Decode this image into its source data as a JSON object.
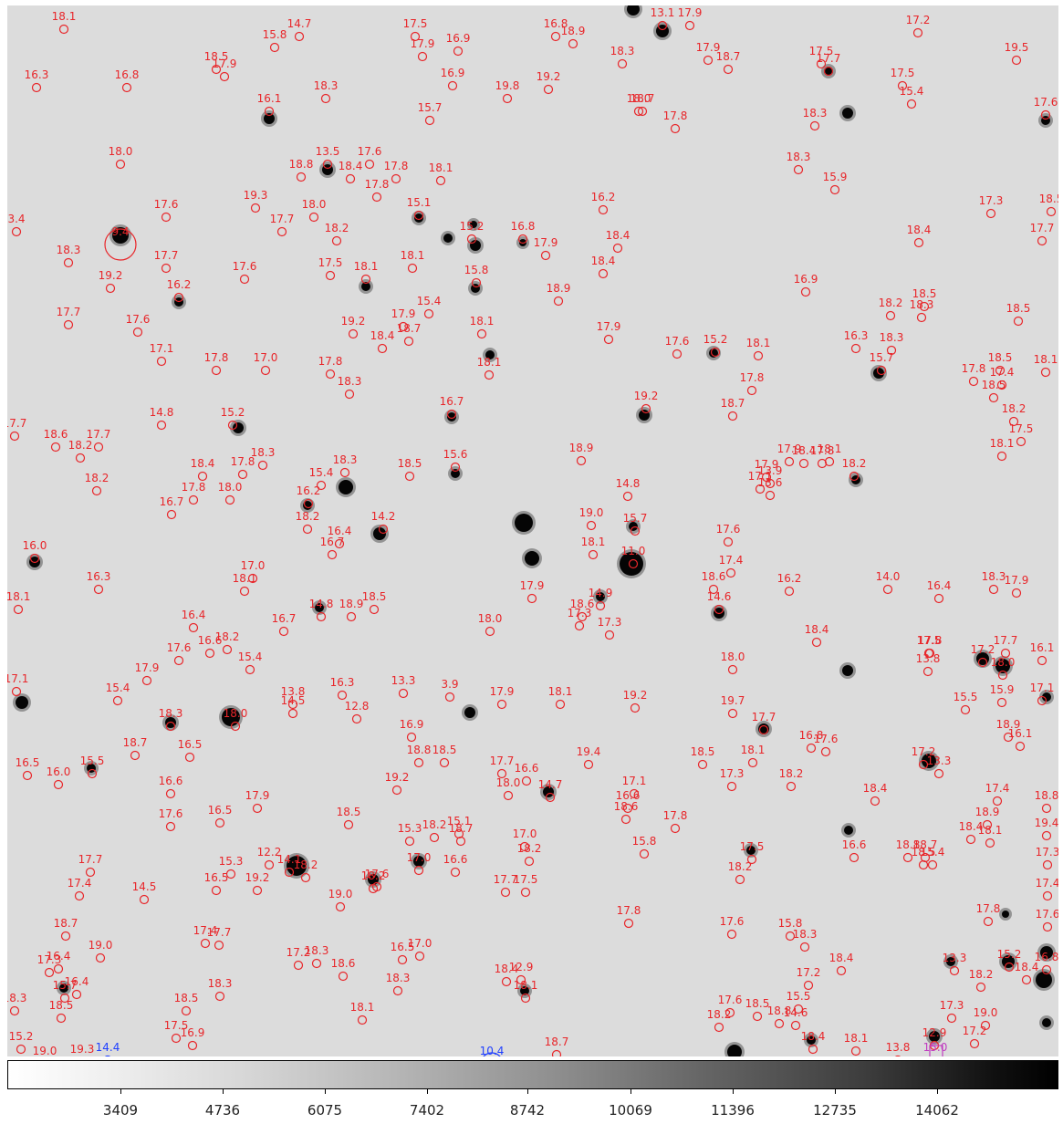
{
  "image": {
    "background_color": "#dcdcdc",
    "marker_color_catalog": "#e8262a",
    "marker_color_target": "#1f3fff",
    "marker_color_box": "#c03cc0"
  },
  "colorbar": {
    "tick_labels": [
      "3409",
      "4736",
      "6075",
      "7402",
      "8742",
      "10069",
      "11396",
      "12735",
      "14062"
    ]
  },
  "catalog_labels": [
    {
      "t": "18.1",
      "c": "r"
    },
    {
      "t": "14.7",
      "c": "r"
    },
    {
      "t": "15.8",
      "c": "r"
    },
    {
      "t": "17.5",
      "c": "r"
    },
    {
      "t": "17.9",
      "c": "r"
    },
    {
      "t": "16.9",
      "c": "r"
    },
    {
      "t": "16.8",
      "c": "r"
    },
    {
      "t": "18.9",
      "c": "r"
    },
    {
      "t": "13.1",
      "c": "r"
    },
    {
      "t": "17.9",
      "c": "r"
    },
    {
      "t": "18.3",
      "c": "r"
    },
    {
      "t": "17.9",
      "c": "r"
    },
    {
      "t": "18.7",
      "c": "r"
    },
    {
      "t": "17.2",
      "c": "r"
    },
    {
      "t": "19.5",
      "c": "r"
    },
    {
      "t": "16.3",
      "c": "r"
    },
    {
      "t": "16.8",
      "c": "r"
    },
    {
      "t": "18.5",
      "c": "r"
    },
    {
      "t": "17.9",
      "c": "r"
    },
    {
      "t": "18.3",
      "c": "r"
    },
    {
      "t": "16.9",
      "c": "r"
    },
    {
      "t": "19.8",
      "c": "r"
    },
    {
      "t": "19.2",
      "c": "r"
    },
    {
      "t": "18.7",
      "c": "r"
    },
    {
      "t": "17.5",
      "c": "r"
    },
    {
      "t": "15.4",
      "c": "r"
    },
    {
      "t": "17.6",
      "c": "r"
    },
    {
      "t": "16.1",
      "c": "r"
    },
    {
      "t": "15.7",
      "c": "r"
    },
    {
      "t": "18.0",
      "c": "r"
    },
    {
      "t": "17.8",
      "c": "r"
    },
    {
      "t": "18.3",
      "c": "r"
    },
    {
      "t": "17.5",
      "c": "r"
    },
    {
      "t": "17.7",
      "c": "r"
    },
    {
      "t": "18.0",
      "c": "r"
    },
    {
      "t": "13.5",
      "c": "r"
    },
    {
      "t": "17.6",
      "c": "r"
    },
    {
      "t": "18.8",
      "c": "r"
    },
    {
      "t": "18.4",
      "c": "r"
    },
    {
      "t": "17.8",
      "c": "r"
    },
    {
      "t": "18.1",
      "c": "r"
    },
    {
      "t": "17.8",
      "c": "r"
    },
    {
      "t": "18.3",
      "c": "r"
    },
    {
      "t": "15.9",
      "c": "r"
    },
    {
      "t": "9.4",
      "c": "r"
    },
    {
      "t": "17.6",
      "c": "r"
    },
    {
      "t": "19.3",
      "c": "r"
    },
    {
      "t": "18.0",
      "c": "r"
    },
    {
      "t": "15.1",
      "c": "r"
    },
    {
      "t": "16.2",
      "c": "r"
    },
    {
      "t": "17.3",
      "c": "r"
    },
    {
      "t": "18.5",
      "c": "r"
    },
    {
      "t": "3.4",
      "c": "r"
    },
    {
      "t": "17.7",
      "c": "r"
    },
    {
      "t": "18.2",
      "c": "r"
    },
    {
      "t": "15.2",
      "c": "r"
    },
    {
      "t": "16.8",
      "c": "r"
    },
    {
      "t": "17.9",
      "c": "r"
    },
    {
      "t": "18.4",
      "c": "r"
    },
    {
      "t": "18.4",
      "c": "r"
    },
    {
      "t": "17.7",
      "c": "r"
    },
    {
      "t": "18.3",
      "c": "r"
    },
    {
      "t": "17.7",
      "c": "r"
    },
    {
      "t": "17.6",
      "c": "r"
    },
    {
      "t": "17.5",
      "c": "r"
    },
    {
      "t": "18.1",
      "c": "r"
    },
    {
      "t": "18.1",
      "c": "r"
    },
    {
      "t": "18.4",
      "c": "r"
    },
    {
      "t": "19.2",
      "c": "r"
    },
    {
      "t": "16.2",
      "c": "r"
    },
    {
      "t": "15.8",
      "c": "r"
    },
    {
      "t": "16.9",
      "c": "r"
    },
    {
      "t": "18.5",
      "c": "r"
    },
    {
      "t": "17.7",
      "c": "r"
    },
    {
      "t": "17.6",
      "c": "r"
    },
    {
      "t": "18.9",
      "c": "r"
    },
    {
      "t": "18.2",
      "c": "r"
    },
    {
      "t": "18.3",
      "c": "r"
    },
    {
      "t": "18.5",
      "c": "r"
    },
    {
      "t": "19.2",
      "c": "r"
    },
    {
      "t": "17.9",
      "c": "r"
    },
    {
      "t": "18.7",
      "c": "r"
    },
    {
      "t": "18.1",
      "c": "r"
    },
    {
      "t": "18.4",
      "c": "r"
    },
    {
      "t": "17.1",
      "c": "r"
    },
    {
      "t": "17.8",
      "c": "r"
    },
    {
      "t": "17.0",
      "c": "r"
    },
    {
      "t": "17.8",
      "c": "r"
    },
    {
      "t": "18.1",
      "c": "r"
    },
    {
      "t": "15.4",
      "c": "r"
    },
    {
      "t": "17.9",
      "c": "r"
    },
    {
      "t": "17.6",
      "c": "r"
    },
    {
      "t": "15.2",
      "c": "r"
    },
    {
      "t": "18.1",
      "c": "r"
    },
    {
      "t": "16.3",
      "c": "r"
    },
    {
      "t": "18.3",
      "c": "r"
    },
    {
      "t": "15.7",
      "c": "r"
    },
    {
      "t": "18.5",
      "c": "r"
    },
    {
      "t": "17.4",
      "c": "r"
    },
    {
      "t": "18.1",
      "c": "r"
    },
    {
      "t": "18.3",
      "c": "r"
    },
    {
      "t": "17.8",
      "c": "r"
    },
    {
      "t": "17.8",
      "c": "r"
    },
    {
      "t": "18.5",
      "c": "r"
    },
    {
      "t": "14.8",
      "c": "r"
    },
    {
      "t": "15.2",
      "c": "r"
    },
    {
      "t": "16.7",
      "c": "r"
    },
    {
      "t": "19.2",
      "c": "r"
    },
    {
      "t": "18.7",
      "c": "r"
    },
    {
      "t": "18.2",
      "c": "r"
    },
    {
      "t": "17.7",
      "c": "r"
    },
    {
      "t": "18.6",
      "c": "r"
    },
    {
      "t": "17.7",
      "c": "r"
    },
    {
      "t": "18.2",
      "c": "r"
    },
    {
      "t": "18.1",
      "c": "r"
    },
    {
      "t": "17.5",
      "c": "r"
    },
    {
      "t": "18.4",
      "c": "r"
    },
    {
      "t": "17.8",
      "c": "r"
    },
    {
      "t": "18.3",
      "c": "r"
    },
    {
      "t": "18.5",
      "c": "r"
    },
    {
      "t": "18.3",
      "c": "r"
    },
    {
      "t": "15.6",
      "c": "r"
    },
    {
      "t": "18.9",
      "c": "r"
    },
    {
      "t": "18.4",
      "c": "r"
    },
    {
      "t": "17.8",
      "c": "r"
    },
    {
      "t": "18.2",
      "c": "r"
    },
    {
      "t": "13.8",
      "c": "r"
    },
    {
      "t": "13.9",
      "c": "r"
    },
    {
      "t": "17.9",
      "c": "r"
    },
    {
      "t": "18.1",
      "c": "r"
    },
    {
      "t": "18.2",
      "c": "r"
    },
    {
      "t": "16.7",
      "c": "r"
    },
    {
      "t": "17.8",
      "c": "r"
    },
    {
      "t": "18.0",
      "c": "r"
    },
    {
      "t": "16.2",
      "c": "r"
    },
    {
      "t": "15.4",
      "c": "r"
    },
    {
      "t": "14.8",
      "c": "r"
    },
    {
      "t": "13.6",
      "c": "r"
    },
    {
      "t": "17.1",
      "c": "r"
    },
    {
      "t": "17.9",
      "c": "r"
    },
    {
      "t": "18.2",
      "c": "r"
    },
    {
      "t": "14.2",
      "c": "r"
    },
    {
      "t": "19.0",
      "c": "r"
    },
    {
      "t": "15.7",
      "c": "r"
    },
    {
      "t": "17.6",
      "c": "r"
    },
    {
      "t": "16.0",
      "c": "r"
    },
    {
      "t": "16.7",
      "c": "r"
    },
    {
      "t": "16.4",
      "c": "r"
    },
    {
      "t": "18.1",
      "c": "r"
    },
    {
      "t": "11.0",
      "c": "r"
    },
    {
      "t": "17.4",
      "c": "r"
    },
    {
      "t": "16.3",
      "c": "r"
    },
    {
      "t": "18.1",
      "c": "r"
    },
    {
      "t": "17.0",
      "c": "r"
    },
    {
      "t": "18.6",
      "c": "r"
    },
    {
      "t": "17.9",
      "c": "r"
    },
    {
      "t": "14.9",
      "c": "r"
    },
    {
      "t": "18.6",
      "c": "r"
    },
    {
      "t": "16.2",
      "c": "r"
    },
    {
      "t": "17.3",
      "c": "r"
    },
    {
      "t": "14.0",
      "c": "r"
    },
    {
      "t": "16.4",
      "c": "r"
    },
    {
      "t": "18.3",
      "c": "r"
    },
    {
      "t": "17.9",
      "c": "r"
    },
    {
      "t": "18.1",
      "c": "r"
    },
    {
      "t": "14.8",
      "c": "r"
    },
    {
      "t": "18.5",
      "c": "r"
    },
    {
      "t": "16.7",
      "c": "r"
    },
    {
      "t": "18.9",
      "c": "r"
    },
    {
      "t": "14.6",
      "c": "r"
    },
    {
      "t": "16.4",
      "c": "r"
    },
    {
      "t": "18.0",
      "c": "r"
    },
    {
      "t": "17.3",
      "c": "r"
    },
    {
      "t": "18.4",
      "c": "r"
    },
    {
      "t": "18.0",
      "c": "r"
    },
    {
      "t": "17.8",
      "c": "r"
    },
    {
      "t": "16.6",
      "c": "r"
    },
    {
      "t": "18.2",
      "c": "r"
    },
    {
      "t": "17.7",
      "c": "r"
    },
    {
      "t": "17.5",
      "c": "r"
    },
    {
      "t": "17.9",
      "c": "r"
    },
    {
      "t": "17.6",
      "c": "r"
    },
    {
      "t": "15.4",
      "c": "r"
    },
    {
      "t": "16.1",
      "c": "r"
    },
    {
      "t": "17.2",
      "c": "r"
    },
    {
      "t": "18.0",
      "c": "r"
    },
    {
      "t": "17.1",
      "c": "r"
    },
    {
      "t": "15.4",
      "c": "r"
    },
    {
      "t": "13.8",
      "c": "r"
    },
    {
      "t": "13.3",
      "c": "r"
    },
    {
      "t": "3.9",
      "c": "r"
    },
    {
      "t": "16.3",
      "c": "r"
    },
    {
      "t": "17.9",
      "c": "r"
    },
    {
      "t": "18.1",
      "c": "r"
    },
    {
      "t": "19.2",
      "c": "r"
    },
    {
      "t": "17.1",
      "c": "r"
    },
    {
      "t": "18.3",
      "c": "r"
    },
    {
      "t": "18.0",
      "c": "r"
    },
    {
      "t": "15.9",
      "c": "r"
    },
    {
      "t": "15.5",
      "c": "r"
    },
    {
      "t": "12.8",
      "c": "r"
    },
    {
      "t": "17.7",
      "c": "r"
    },
    {
      "t": "19.7",
      "c": "r"
    },
    {
      "t": "14.5",
      "c": "r"
    },
    {
      "t": "16.9",
      "c": "r"
    },
    {
      "t": "18.8",
      "c": "r"
    },
    {
      "t": "18.5",
      "c": "r"
    },
    {
      "t": "18.7",
      "c": "r"
    },
    {
      "t": "16.5",
      "c": "r"
    },
    {
      "t": "16.8",
      "c": "r"
    },
    {
      "t": "16.1",
      "c": "r"
    },
    {
      "t": "17.6",
      "c": "r"
    },
    {
      "t": "17.2",
      "c": "r"
    },
    {
      "t": "18.9",
      "c": "r"
    },
    {
      "t": "13.3",
      "c": "r"
    },
    {
      "t": "15.5",
      "c": "r"
    },
    {
      "t": "16.5",
      "c": "r"
    },
    {
      "t": "16.0",
      "c": "r"
    },
    {
      "t": "17.7",
      "c": "r"
    },
    {
      "t": "19.4",
      "c": "r"
    },
    {
      "t": "18.1",
      "c": "r"
    },
    {
      "t": "18.5",
      "c": "r"
    },
    {
      "t": "17.3",
      "c": "r"
    },
    {
      "t": "18.2",
      "c": "r"
    },
    {
      "t": "18.4",
      "c": "r"
    },
    {
      "t": "17.4",
      "c": "r"
    },
    {
      "t": "18.8",
      "c": "r"
    },
    {
      "t": "16.6",
      "c": "r"
    },
    {
      "t": "17.9",
      "c": "r"
    },
    {
      "t": "19.2",
      "c": "r"
    },
    {
      "t": "14.7",
      "c": "r"
    },
    {
      "t": "16.6",
      "c": "r"
    },
    {
      "t": "18.0",
      "c": "r"
    },
    {
      "t": "16.6",
      "c": "r"
    },
    {
      "t": "17.1",
      "c": "r"
    },
    {
      "t": "18.6",
      "c": "r"
    },
    {
      "t": "18.9",
      "c": "r"
    },
    {
      "t": "19.4",
      "c": "r"
    },
    {
      "t": "16.5",
      "c": "r"
    },
    {
      "t": "17.6",
      "c": "r"
    },
    {
      "t": "15.3",
      "c": "r"
    },
    {
      "t": "18.5",
      "c": "r"
    },
    {
      "t": "18.2",
      "c": "r"
    },
    {
      "t": "15.1",
      "c": "r"
    },
    {
      "t": "18.7",
      "c": "r"
    },
    {
      "t": "15.8",
      "c": "r"
    },
    {
      "t": "17.8",
      "c": "r"
    },
    {
      "t": "17.5",
      "c": "r"
    },
    {
      "t": "18.1",
      "c": "r"
    },
    {
      "t": "18.8",
      "c": "r"
    },
    {
      "t": "17.0",
      "c": "r"
    },
    {
      "t": "17.7",
      "c": "r"
    },
    {
      "t": "17.4",
      "c": "r"
    },
    {
      "t": "15.3",
      "c": "r"
    },
    {
      "t": "12.2",
      "c": "r"
    },
    {
      "t": "14.1",
      "c": "r"
    },
    {
      "t": "18.2",
      "c": "r"
    },
    {
      "t": "17.0",
      "c": "r"
    },
    {
      "t": "16.6",
      "c": "r"
    },
    {
      "t": "17.6",
      "c": "r"
    },
    {
      "t": "17.7",
      "c": "r"
    },
    {
      "t": "18.2",
      "c": "r"
    },
    {
      "t": "14.5",
      "c": "r"
    },
    {
      "t": "16.5",
      "c": "r"
    },
    {
      "t": "19.2",
      "c": "r"
    },
    {
      "t": "19.0",
      "c": "r"
    },
    {
      "t": "18.2",
      "c": "r"
    },
    {
      "t": "17.5",
      "c": "r"
    },
    {
      "t": "18.2",
      "c": "r"
    },
    {
      "t": "18.7",
      "c": "r"
    },
    {
      "t": "17.3",
      "c": "r"
    },
    {
      "t": "18.4",
      "c": "r"
    },
    {
      "t": "18.5",
      "c": "r"
    },
    {
      "t": "16.6",
      "c": "r"
    },
    {
      "t": "17.6",
      "c": "r"
    },
    {
      "t": "17.8",
      "c": "r"
    },
    {
      "t": "17.6",
      "c": "r"
    },
    {
      "t": "17.8",
      "c": "r"
    },
    {
      "t": "17.4",
      "c": "r"
    },
    {
      "t": "15.4",
      "c": "r"
    },
    {
      "t": "18.7",
      "c": "r"
    },
    {
      "t": "19.0",
      "c": "r"
    },
    {
      "t": "17.4",
      "c": "r"
    },
    {
      "t": "17.7",
      "c": "r"
    },
    {
      "t": "17.2",
      "c": "r"
    },
    {
      "t": "18.3",
      "c": "r"
    },
    {
      "t": "17.0",
      "c": "r"
    },
    {
      "t": "16.5",
      "c": "r"
    },
    {
      "t": "12.9",
      "c": "r"
    },
    {
      "t": "15.8",
      "c": "r"
    },
    {
      "t": "18.3",
      "c": "r"
    },
    {
      "t": "18.4",
      "c": "r"
    },
    {
      "t": "16.4",
      "c": "r"
    },
    {
      "t": "17.3",
      "c": "r"
    },
    {
      "t": "16.8",
      "c": "r"
    },
    {
      "t": "18.4",
      "c": "r"
    },
    {
      "t": "15.2",
      "c": "r"
    },
    {
      "t": "18.2",
      "c": "r"
    },
    {
      "t": "13.3",
      "c": "r"
    },
    {
      "t": "16.4",
      "c": "r"
    },
    {
      "t": "15.7",
      "c": "r"
    },
    {
      "t": "18.3",
      "c": "r"
    },
    {
      "t": "18.4",
      "c": "r"
    },
    {
      "t": "18.5",
      "c": "r"
    },
    {
      "t": "18.3",
      "c": "r"
    },
    {
      "t": "18.1",
      "c": "r"
    },
    {
      "t": "18.6",
      "c": "r"
    },
    {
      "t": "18.1",
      "c": "r"
    },
    {
      "t": "15.5",
      "c": "r"
    },
    {
      "t": "17.2",
      "c": "r"
    },
    {
      "t": "17.3",
      "c": "r"
    },
    {
      "t": "18.2",
      "c": "r"
    },
    {
      "t": "17.6",
      "c": "r"
    },
    {
      "t": "18.5",
      "c": "r"
    },
    {
      "t": "18.8",
      "c": "r"
    },
    {
      "t": "18.4",
      "c": "r"
    },
    {
      "t": "14.6",
      "c": "r"
    },
    {
      "t": "18.1",
      "c": "r"
    },
    {
      "t": "12.9",
      "c": "r"
    },
    {
      "t": "19.0",
      "c": "r"
    },
    {
      "t": "17.2",
      "c": "r"
    },
    {
      "t": "18.5",
      "c": "r"
    },
    {
      "t": "18.3",
      "c": "r"
    },
    {
      "t": "17.5",
      "c": "r"
    },
    {
      "t": "16.9",
      "c": "r"
    },
    {
      "t": "18.7",
      "c": "r"
    },
    {
      "t": "15.2",
      "c": "r"
    },
    {
      "t": "19.0",
      "c": "r"
    },
    {
      "t": "19.3",
      "c": "r"
    },
    {
      "t": "14.4",
      "c": "b"
    },
    {
      "t": "10.4",
      "c": "b"
    },
    {
      "t": "13.8",
      "c": "r"
    },
    {
      "t": "15.0",
      "c": "m"
    }
  ]
}
